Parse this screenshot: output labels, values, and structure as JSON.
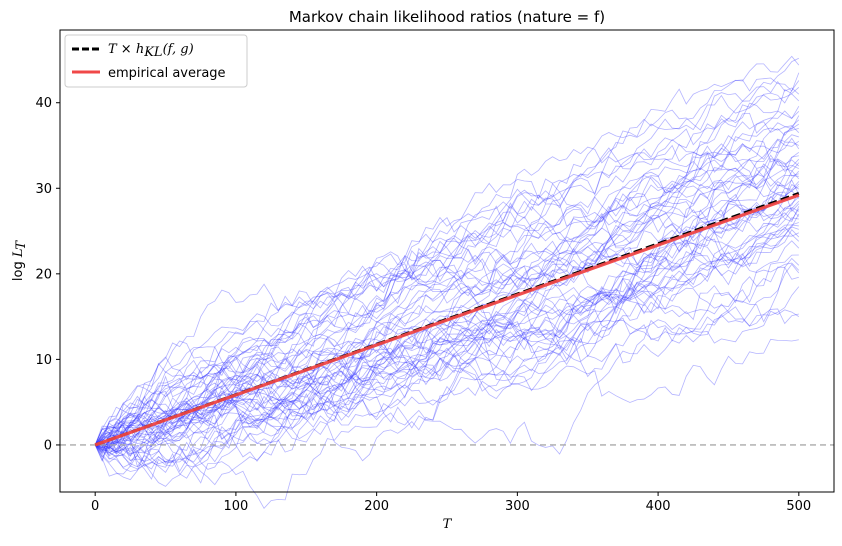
{
  "chart_data": {
    "type": "line",
    "title": "Markov chain likelihood ratios (nature = f)",
    "xlabel": "T",
    "ylabel": "log L_T",
    "ylabel_parts": {
      "prefix": "log ",
      "base": "L",
      "sub": "T"
    },
    "xlim": [
      -25,
      525
    ],
    "ylim": [
      -5.5,
      48.5
    ],
    "xticks": [
      0,
      100,
      200,
      300,
      400,
      500
    ],
    "yticks": [
      0,
      10,
      20,
      30,
      40
    ],
    "grid": false,
    "legend_placement": "top-left",
    "legend": [
      {
        "label": "T × h_KL(f, g)",
        "label_parts": {
          "a": "T",
          "op": " × ",
          "h": "h",
          "sub": "KL",
          "args": "(f, g)"
        },
        "style": "dashed",
        "color": "#000000"
      },
      {
        "label": "empirical average",
        "style": "solid",
        "color": "#f04848"
      }
    ],
    "reference_line": {
      "y": 0,
      "style": "dashed",
      "color": "#aaaaaa"
    },
    "theoretical_line": {
      "slope": 0.0588,
      "x": [
        0,
        500
      ],
      "y": [
        0,
        29.4
      ]
    },
    "empirical_average": {
      "x": [
        0,
        500
      ],
      "y": [
        0,
        29.2
      ]
    },
    "sample_paths": {
      "count": 60,
      "x_range": [
        0,
        500
      ],
      "color": "#2b2bff",
      "end_values": [
        12.3,
        15.0,
        15.3,
        18.5,
        19.6,
        20.1,
        20.4,
        21.0,
        22.2,
        23.0,
        23.8,
        24.3,
        24.8,
        25.2,
        25.6,
        26.0,
        26.4,
        26.7,
        27.0,
        27.3,
        27.6,
        27.9,
        28.2,
        28.5,
        28.8,
        29.0,
        29.3,
        29.6,
        29.9,
        30.2,
        30.5,
        30.8,
        31.1,
        31.4,
        31.7,
        32.0,
        32.3,
        32.6,
        33.0,
        33.4,
        33.8,
        34.2,
        34.6,
        35.0,
        35.5,
        36.0,
        36.5,
        37.0,
        37.5,
        38.0,
        38.5,
        39.0,
        39.6,
        40.2,
        41.0,
        41.8,
        42.6,
        43.5,
        44.4,
        45.2
      ]
    }
  }
}
